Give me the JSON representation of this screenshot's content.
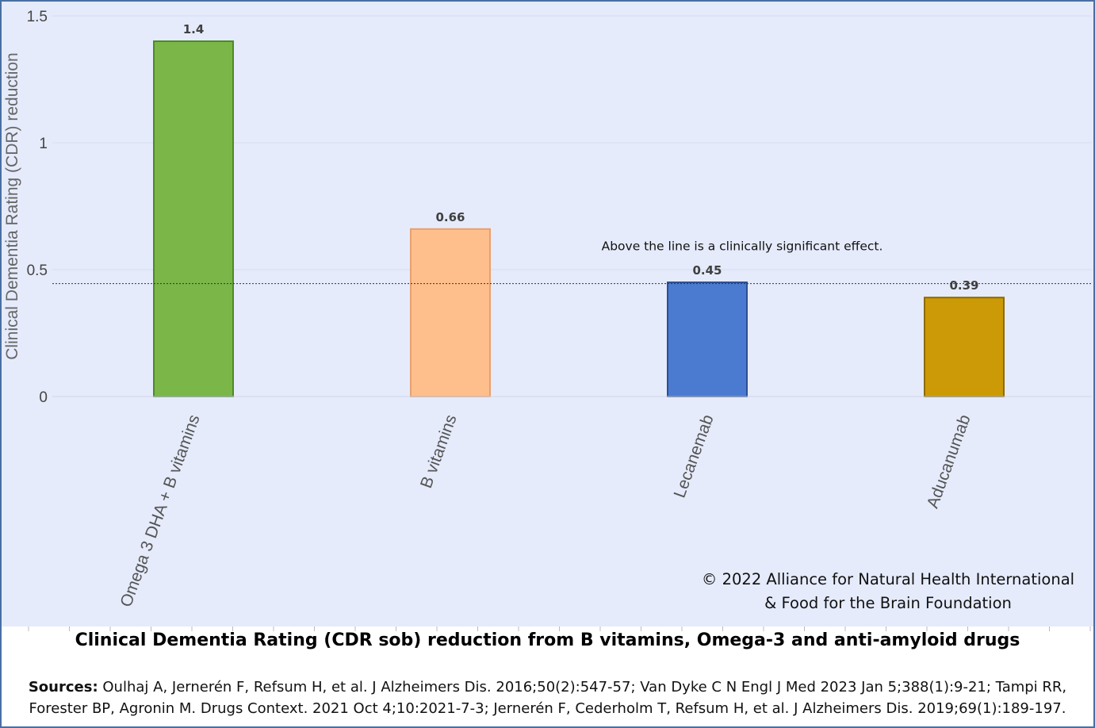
{
  "chart_data": {
    "type": "bar",
    "categories": [
      "Omega 3 DHA + B vitamins",
      "B vitamins",
      "Lecanemab",
      "Aducanumab"
    ],
    "values": [
      1.4,
      0.66,
      0.45,
      0.39
    ],
    "data_labels": [
      "1.4",
      "0.66",
      "0.45",
      "0.39"
    ],
    "colors": [
      "#7ab648",
      "#ffbf8c",
      "#4a7bd1",
      "#cc9a06"
    ],
    "border_colors": [
      "#4e8a27",
      "#e8a070",
      "#2c4f94",
      "#8c6a05"
    ],
    "title": "Clinical Dementia Rating (CDR sob) reduction from B vitamins, Omega-3 and anti-amyloid drugs",
    "xlabel": "",
    "ylabel": "Clinical Dementia Rating (CDR) reduction",
    "ylim": [
      0,
      1.5
    ],
    "yticks": [
      0,
      0.5,
      1,
      1.5
    ],
    "ytick_labels": [
      "0",
      "0.5",
      "1",
      "1.5"
    ],
    "grid": true,
    "reference_line": {
      "value": 0.445,
      "style": "dotted",
      "label": "Above the line is a clinically significant effect."
    },
    "background": "#e5ebfb"
  },
  "copyright": {
    "line1": "© 2022 Alliance for Natural Health International",
    "line2": "& Food for the Brain Foundation"
  },
  "sources": {
    "label": "Sources:",
    "line1": "Oulhaj A, Jernerén F, Refsum H, et al. J Alzheimers Dis. 2016;50(2):547-57; Van Dyke C N Engl J Med 2023 Jan 5;388(1):9-21; Tampi RR,",
    "line2": "Forester BP, Agronin M. Drugs Context. 2021 Oct 4;10:2021-7-3; Jernerén F, Cederholm T, Refsum H, et al. J Alzheimers Dis. 2019;69(1):189-197."
  }
}
